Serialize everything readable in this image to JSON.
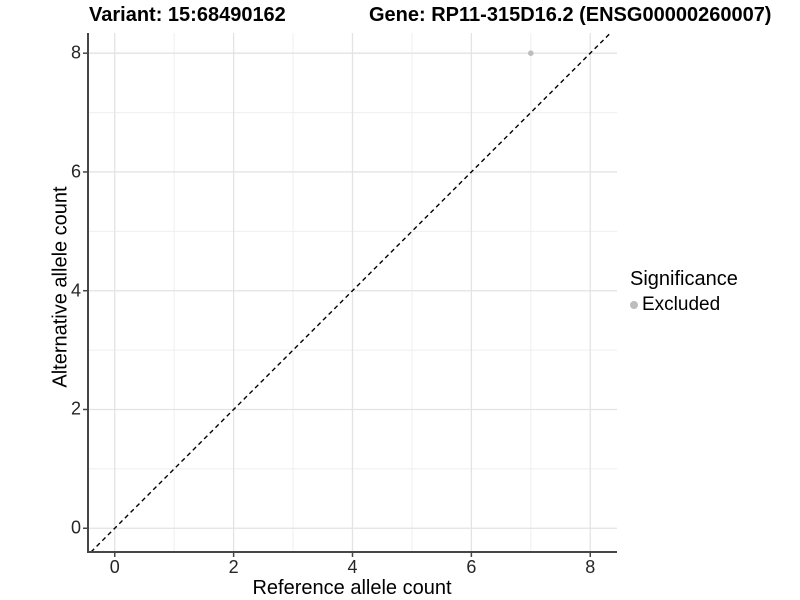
{
  "chart_data": {
    "type": "scatter",
    "title_left": "Variant: 15:68490162",
    "title_right": "Gene: RP11-315D16.2 (ENSG00000260007)",
    "xlabel": "Reference allele count",
    "ylabel": "Alternative allele count",
    "xticks": [
      0,
      2,
      4,
      6,
      8
    ],
    "yticks": [
      0,
      2,
      4,
      6,
      8
    ],
    "minor_xticks": [
      1,
      3,
      5,
      7
    ],
    "minor_yticks": [
      1,
      3,
      5,
      7
    ],
    "xlim": [
      -0.45,
      8.45
    ],
    "ylim": [
      -0.4,
      8.34
    ],
    "grid": true,
    "points": [
      {
        "x": 7,
        "y": 8,
        "series": "Excluded"
      }
    ],
    "reference_line": {
      "kind": "identity",
      "style": "dashed",
      "from": -0.4,
      "to": 8.34
    },
    "legend": {
      "position": "right",
      "title": "Significance",
      "items": [
        {
          "label": "Excluded",
          "color": "#bdbdbd"
        }
      ]
    }
  },
  "colors": {
    "background": "#ffffff",
    "grid_major": "#e3e3e3",
    "grid_minor": "#efefef",
    "axis_line": "#464646",
    "tick_mark": "#464646",
    "tick_text": "#262626",
    "dashed_line": "#000000",
    "point_excluded": "#bdbdbd"
  }
}
